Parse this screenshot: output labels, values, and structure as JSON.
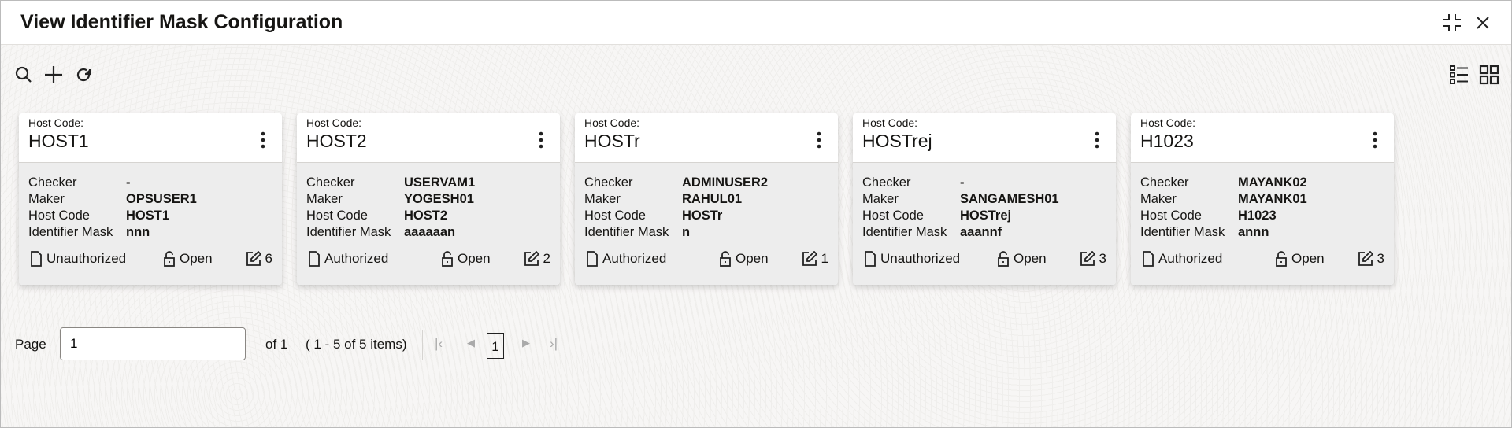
{
  "header": {
    "title": "View Identifier Mask Configuration"
  },
  "cards": [
    {
      "label": "Host Code:",
      "title": "HOST1",
      "fields": [
        {
          "k": "Checker",
          "v": "-"
        },
        {
          "k": "Maker",
          "v": "OPSUSER1"
        },
        {
          "k": "Host Code",
          "v": "HOST1"
        },
        {
          "k": "Identifier Mask",
          "v": "nnn"
        }
      ],
      "status": "Unauthorized",
      "lock": "Open",
      "count": "6"
    },
    {
      "label": "Host Code:",
      "title": "HOST2",
      "fields": [
        {
          "k": "Checker",
          "v": "USERVAM1"
        },
        {
          "k": "Maker",
          "v": "YOGESH01"
        },
        {
          "k": "Host Code",
          "v": "HOST2"
        },
        {
          "k": "Identifier Mask",
          "v": "aaaaaan"
        }
      ],
      "status": "Authorized",
      "lock": "Open",
      "count": "2"
    },
    {
      "label": "Host Code:",
      "title": "HOSTr",
      "fields": [
        {
          "k": "Checker",
          "v": "ADMINUSER2"
        },
        {
          "k": "Maker",
          "v": "RAHUL01"
        },
        {
          "k": "Host Code",
          "v": "HOSTr"
        },
        {
          "k": "Identifier Mask",
          "v": "n"
        }
      ],
      "status": "Authorized",
      "lock": "Open",
      "count": "1"
    },
    {
      "label": "Host Code:",
      "title": "HOSTrej",
      "fields": [
        {
          "k": "Checker",
          "v": "-"
        },
        {
          "k": "Maker",
          "v": "SANGAMESH01"
        },
        {
          "k": "Host Code",
          "v": "HOSTrej"
        },
        {
          "k": "Identifier Mask",
          "v": "aaannf"
        }
      ],
      "status": "Unauthorized",
      "lock": "Open",
      "count": "3"
    },
    {
      "label": "Host Code:",
      "title": "H1023",
      "fields": [
        {
          "k": "Checker",
          "v": "MAYANK02"
        },
        {
          "k": "Maker",
          "v": "MAYANK01"
        },
        {
          "k": "Host Code",
          "v": "H1023"
        },
        {
          "k": "Identifier Mask",
          "v": "annn"
        }
      ],
      "status": "Authorized",
      "lock": "Open",
      "count": "3"
    }
  ],
  "pagination": {
    "page_label": "Page",
    "page_value": "1",
    "of_label": "of 1",
    "items_label": "( 1 - 5 of 5 items)",
    "current": "1"
  }
}
